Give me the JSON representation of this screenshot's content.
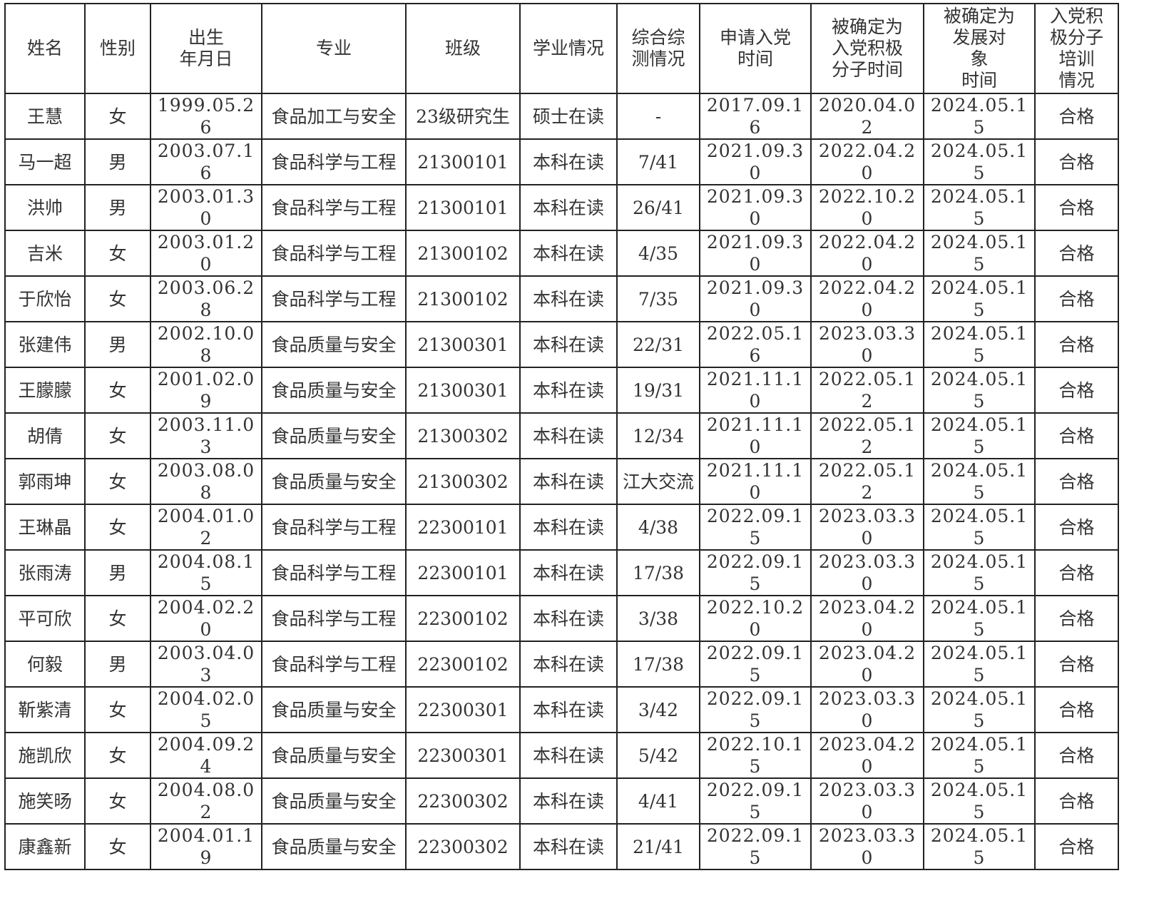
{
  "table": {
    "headers": [
      "姓名",
      "性别",
      "出生\n年月日",
      "专业",
      "班级",
      "学业情况",
      "综合综\n测情况",
      "申请入党\n时间",
      "被确定为\n入党积极\n分子时间",
      "被确定为\n发展对\n象\n时间",
      "入党积\n极分子\n培训\n情况"
    ],
    "rows": [
      [
        "王慧",
        "女",
        "1999.05.26",
        "食品加工与安全",
        "23级研究生",
        "硕士在读",
        "-",
        "2017.09.16",
        "2020.04.02",
        "2024.05.15",
        "合格"
      ],
      [
        "马一超",
        "男",
        "2003.07.16",
        "食品科学与工程",
        "21300101",
        "本科在读",
        "7/41",
        "2021.09.30",
        "2022.04.20",
        "2024.05.15",
        "合格"
      ],
      [
        "洪帅",
        "男",
        "2003.01.30",
        "食品科学与工程",
        "21300101",
        "本科在读",
        "26/41",
        "2021.09.30",
        "2022.10.20",
        "2024.05.15",
        "合格"
      ],
      [
        "吉米",
        "女",
        "2003.01.20",
        "食品科学与工程",
        "21300102",
        "本科在读",
        "4/35",
        "2021.09.30",
        "2022.04.20",
        "2024.05.15",
        "合格"
      ],
      [
        "于欣怡",
        "女",
        "2003.06.28",
        "食品科学与工程",
        "21300102",
        "本科在读",
        "7/35",
        "2021.09.30",
        "2022.04.20",
        "2024.05.15",
        "合格"
      ],
      [
        "张建伟",
        "男",
        "2002.10.08",
        "食品质量与安全",
        "21300301",
        "本科在读",
        "22/31",
        "2022.05.16",
        "2023.03.30",
        "2024.05.15",
        "合格"
      ],
      [
        "王朦朦",
        "女",
        "2001.02.09",
        "食品质量与安全",
        "21300301",
        "本科在读",
        "19/31",
        "2021.11.10",
        "2022.05.12",
        "2024.05.15",
        "合格"
      ],
      [
        "胡倩",
        "女",
        "2003.11.03",
        "食品质量与安全",
        "21300302",
        "本科在读",
        "12/34",
        "2021.11.10",
        "2022.05.12",
        "2024.05.15",
        "合格"
      ],
      [
        "郭雨坤",
        "女",
        "2003.08.08",
        "食品质量与安全",
        "21300302",
        "本科在读",
        "江大交流",
        "2021.11.10",
        "2022.05.12",
        "2024.05.15",
        "合格"
      ],
      [
        "王琳晶",
        "女",
        "2004.01.02",
        "食品科学与工程",
        "22300101",
        "本科在读",
        "4/38",
        "2022.09.15",
        "2023.03.30",
        "2024.05.15",
        "合格"
      ],
      [
        "张雨涛",
        "男",
        "2004.08.15",
        "食品科学与工程",
        "22300101",
        "本科在读",
        "17/38",
        "2022.09.15",
        "2023.03.30",
        "2024.05.15",
        "合格"
      ],
      [
        "平可欣",
        "女",
        "2004.02.20",
        "食品科学与工程",
        "22300102",
        "本科在读",
        "3/38",
        "2022.10.20",
        "2023.04.20",
        "2024.05.15",
        "合格"
      ],
      [
        "何毅",
        "男",
        "2003.04.03",
        "食品科学与工程",
        "22300102",
        "本科在读",
        "17/38",
        "2022.09.15",
        "2023.04.20",
        "2024.05.15",
        "合格"
      ],
      [
        "靳紫清",
        "女",
        "2004.02.05",
        "食品质量与安全",
        "22300301",
        "本科在读",
        "3/42",
        "2022.09.15",
        "2023.03.30",
        "2024.05.15",
        "合格"
      ],
      [
        "施凯欣",
        "女",
        "2004.09.24",
        "食品质量与安全",
        "22300301",
        "本科在读",
        "5/42",
        "2022.10.15",
        "2023.04.20",
        "2024.05.15",
        "合格"
      ],
      [
        "施笑旸",
        "女",
        "2004.08.02",
        "食品质量与安全",
        "22300302",
        "本科在读",
        "4/41",
        "2022.09.15",
        "2023.03.30",
        "2024.05.15",
        "合格"
      ],
      [
        "康鑫新",
        "女",
        "2004.01.19",
        "食品质量与安全",
        "22300302",
        "本科在读",
        "21/41",
        "2022.09.15",
        "2023.03.30",
        "2024.05.15",
        "合格"
      ]
    ]
  }
}
